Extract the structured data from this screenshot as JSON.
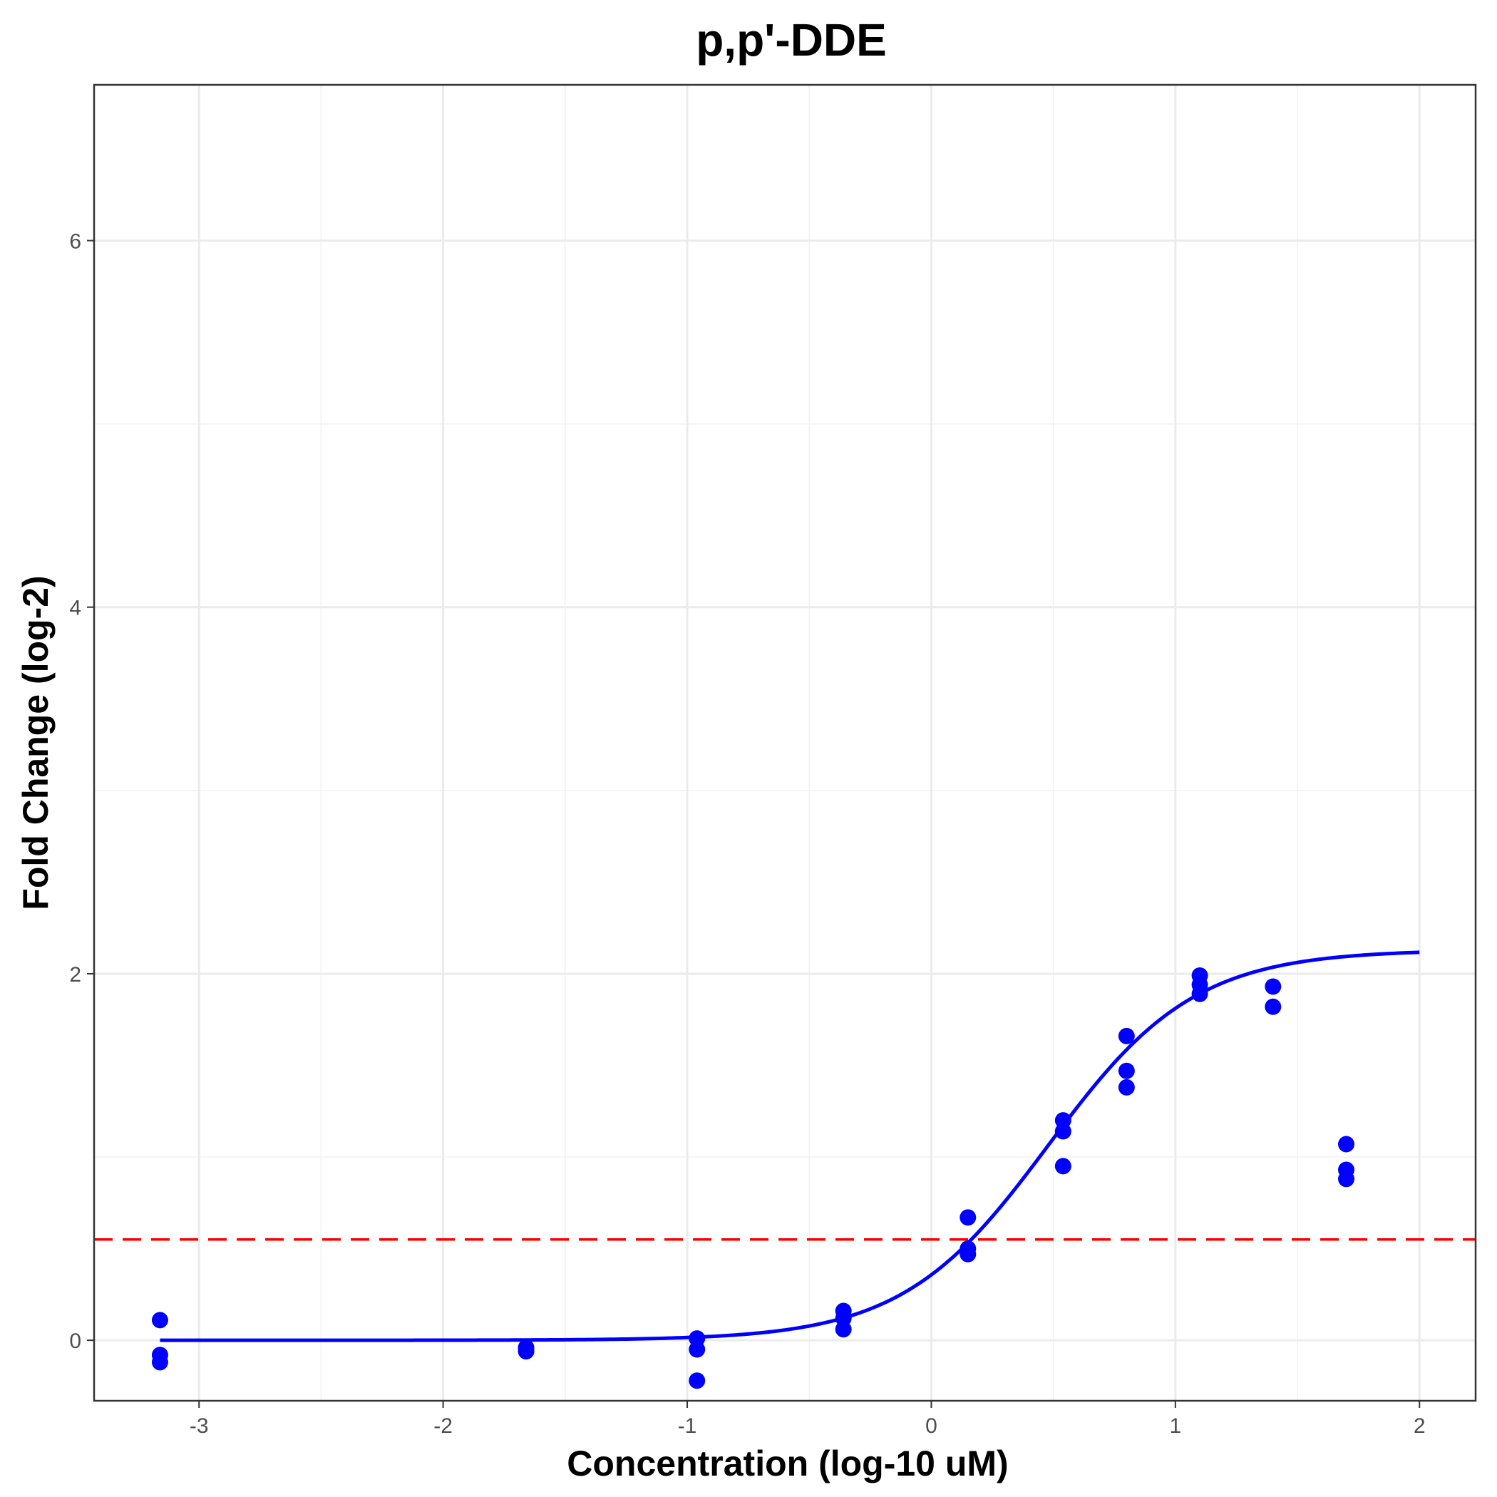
{
  "chart_data": {
    "type": "scatter",
    "title": "p,p'-DDE",
    "xlabel": "Concentration (log-10 uM)",
    "ylabel": "Fold Change (log-2)",
    "xlim": [
      -3.43,
      2.23
    ],
    "ylim": [
      -0.33,
      6.85
    ],
    "x_ticks": [
      -3,
      -2,
      -1,
      0,
      1,
      2
    ],
    "y_ticks": [
      0,
      2,
      4,
      6
    ],
    "grid": true,
    "legend": "none",
    "colors": {
      "points": "#0000ff",
      "curve": "#0000ff",
      "threshold": "#ff0000"
    },
    "points": {
      "x": [
        -3.16,
        -3.16,
        -3.16,
        -1.66,
        -1.66,
        -0.96,
        -0.96,
        -0.96,
        -0.36,
        -0.36,
        -0.36,
        0.15,
        0.15,
        0.15,
        0.54,
        0.54,
        0.54,
        0.8,
        0.8,
        0.8,
        1.1,
        1.1,
        1.1,
        1.4,
        1.4,
        1.7,
        1.7,
        1.7
      ],
      "y": [
        0.11,
        -0.08,
        -0.12,
        -0.04,
        -0.06,
        0.01,
        -0.05,
        -0.22,
        0.16,
        0.12,
        0.06,
        0.67,
        0.5,
        0.47,
        1.2,
        1.14,
        0.95,
        1.66,
        1.47,
        1.38,
        1.99,
        1.94,
        1.89,
        1.93,
        1.82,
        1.07,
        0.93,
        0.88
      ]
    },
    "fit_curve": {
      "type": "hill",
      "baseline": 0.0,
      "top": 2.13,
      "log_ac50": 0.48,
      "hill_slope": 1.45,
      "x_range": [
        -3.16,
        2.0
      ]
    },
    "threshold_line": {
      "y": 0.55,
      "style": "dashed"
    }
  }
}
